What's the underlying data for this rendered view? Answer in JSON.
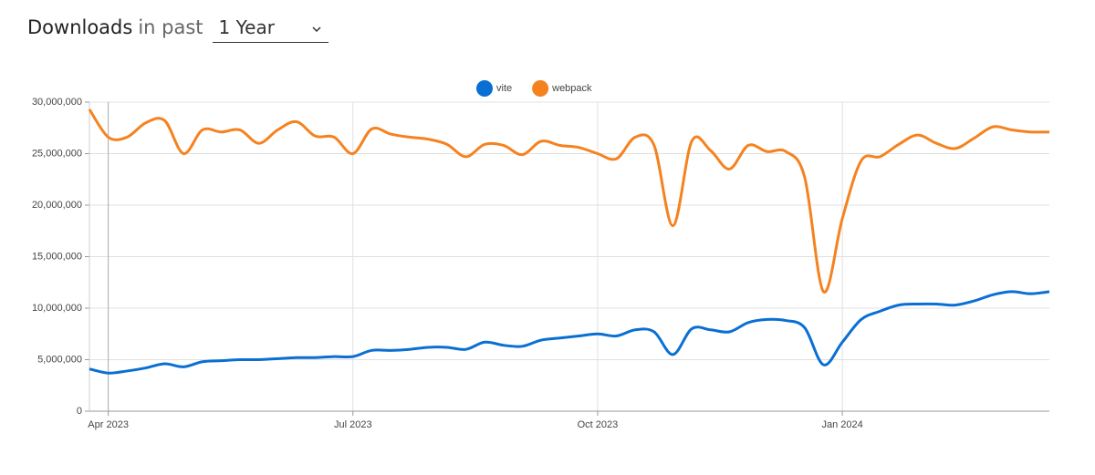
{
  "header": {
    "title": "Downloads",
    "subtitle": "in past",
    "period": "1 Year"
  },
  "chart_data": {
    "type": "line",
    "categories": [
      null,
      "Apr 2023",
      null,
      null,
      null,
      null,
      null,
      null,
      null,
      null,
      null,
      null,
      null,
      null,
      "Jul 2023",
      null,
      null,
      null,
      null,
      null,
      null,
      null,
      null,
      null,
      null,
      null,
      null,
      "Oct 2023",
      null,
      null,
      null,
      null,
      null,
      null,
      null,
      null,
      null,
      null,
      null,
      null,
      "Jan 2024",
      null,
      null,
      null,
      null,
      null,
      null,
      null,
      null,
      null,
      null,
      null
    ],
    "series": [
      {
        "name": "vite",
        "color": "#0a6fd3",
        "values": [
          4100000,
          3700000,
          3900000,
          4200000,
          4600000,
          4300000,
          4800000,
          4900000,
          5000000,
          5000000,
          5100000,
          5200000,
          5200000,
          5300000,
          5300000,
          5900000,
          5900000,
          6000000,
          6200000,
          6200000,
          6000000,
          6700000,
          6400000,
          6300000,
          6900000,
          7100000,
          7300000,
          7500000,
          7300000,
          7900000,
          7700000,
          5500000,
          8000000,
          7900000,
          7700000,
          8600000,
          8900000,
          8800000,
          8100000,
          4500000,
          6700000,
          8900000,
          9700000,
          10300000,
          10400000,
          10400000,
          10300000,
          10700000,
          11300000,
          11600000,
          11400000,
          11600000
        ]
      },
      {
        "name": "webpack",
        "color": "#f5821f",
        "values": [
          29300000,
          26600000,
          26600000,
          28000000,
          28200000,
          25000000,
          27300000,
          27100000,
          27300000,
          26000000,
          27300000,
          28100000,
          26700000,
          26600000,
          25000000,
          27400000,
          26900000,
          26600000,
          26400000,
          25900000,
          24700000,
          25900000,
          25800000,
          24900000,
          26200000,
          25800000,
          25600000,
          25000000,
          24500000,
          26600000,
          25800000,
          18000000,
          26200000,
          25300000,
          23500000,
          25800000,
          25200000,
          25200000,
          22700000,
          11600000,
          18700000,
          24300000,
          24700000,
          25900000,
          26800000,
          26000000,
          25500000,
          26500000,
          27600000,
          27300000,
          27100000,
          27100000
        ]
      }
    ],
    "ylim": [
      0,
      30000000
    ],
    "yticks": [
      0,
      {
        "value": 5000000,
        "label": "5,000,000"
      },
      {
        "value": 10000000,
        "label": "10,000,000"
      },
      {
        "value": 15000000,
        "label": "15,000,000"
      },
      {
        "value": 20000000,
        "label": "20,000,000"
      },
      {
        "value": 25000000,
        "label": "25,000,000"
      },
      {
        "value": 30000000,
        "label": "30,000,000"
      }
    ],
    "grid": true,
    "legend": "top"
  }
}
